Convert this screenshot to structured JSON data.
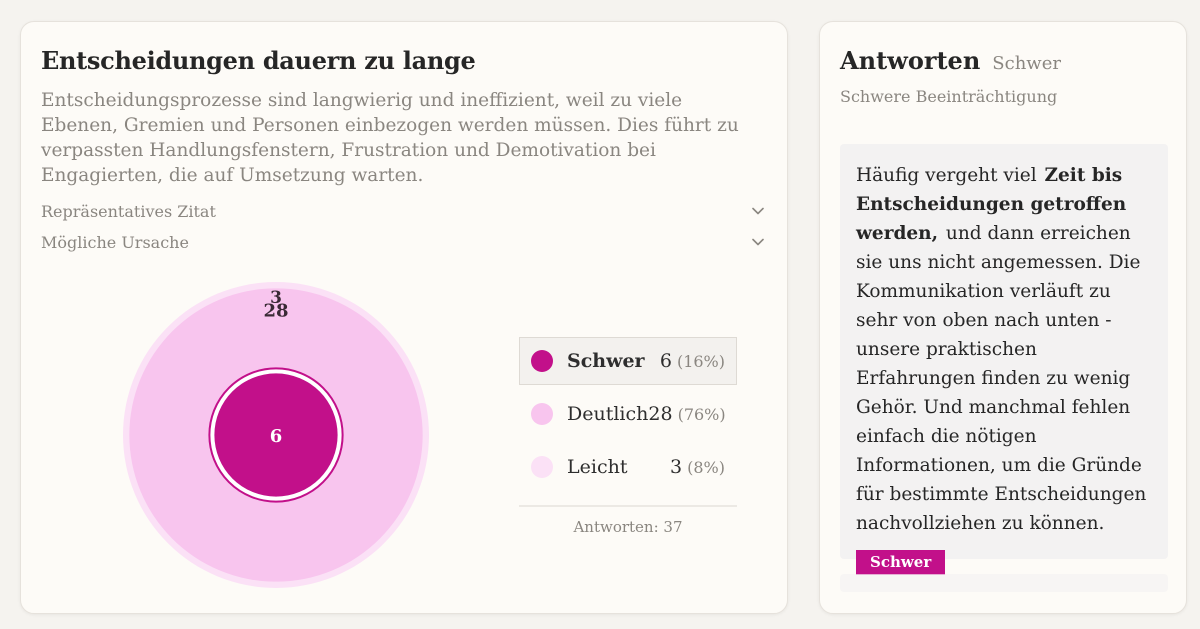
{
  "main": {
    "title": "Entscheidungen dauern zu lange",
    "description": "Entscheidungsprozesse sind langwierig und ineffizient, weil zu viele Ebenen, Gremien und Personen einbezogen werden müssen. Dies führt zu verpassten Handlungsfenstern, Frustration und Demotivation bei Engagierten, die auf Umsetzung warten.",
    "accordions": [
      {
        "label": "Repräsentatives Zitat",
        "icon": "chevron-down-icon"
      },
      {
        "label": "Mögliche Ursache",
        "icon": "chevron-down-icon"
      }
    ]
  },
  "legend": {
    "items": [
      {
        "label": "Schwer",
        "count": "6",
        "pct": "(16%)",
        "color": "#c2108a",
        "active": true
      },
      {
        "label": "Deutlich",
        "count": "28",
        "pct": "(76%)",
        "color": "#f8c5ee",
        "active": false
      },
      {
        "label": "Leicht",
        "count": "3",
        "pct": "(8%)",
        "color": "#fbe1f6",
        "active": false
      }
    ],
    "total": "Antworten: 37"
  },
  "chart_data": {
    "type": "pie",
    "subtype": "nested-circles",
    "categories": [
      "Schwer",
      "Deutlich",
      "Leicht"
    ],
    "values": [
      6,
      28,
      3
    ],
    "percent": [
      16,
      76,
      8
    ],
    "colors": [
      "#c2108a",
      "#f8c5ee",
      "#fbe1f6"
    ],
    "labels": [
      "6",
      "28",
      "3"
    ],
    "total": 37
  },
  "side": {
    "title": "Antworten",
    "filter": "Schwer",
    "subtitle": "Schwere Beeinträchtigung",
    "quote_before": "Häufig vergeht viel ",
    "quote_highlight": "Zeit bis Entscheidungen getroffen werden,",
    "quote_after": " und dann erreichen sie uns nicht angemessen. Die Kommunikation verläuft zu sehr von oben nach unten - unsere praktischen Erfahrungen finden zu wenig Gehör. Und manchmal fehlen einfach die nötigen Informationen, um die Gründe für bestimmte Entscheidungen nachvollziehen zu können.",
    "tag": "Schwer"
  },
  "colors": {
    "accent": "#c2108a",
    "card_bg": "#fdfbf7",
    "muted_text": "#8a8680"
  }
}
